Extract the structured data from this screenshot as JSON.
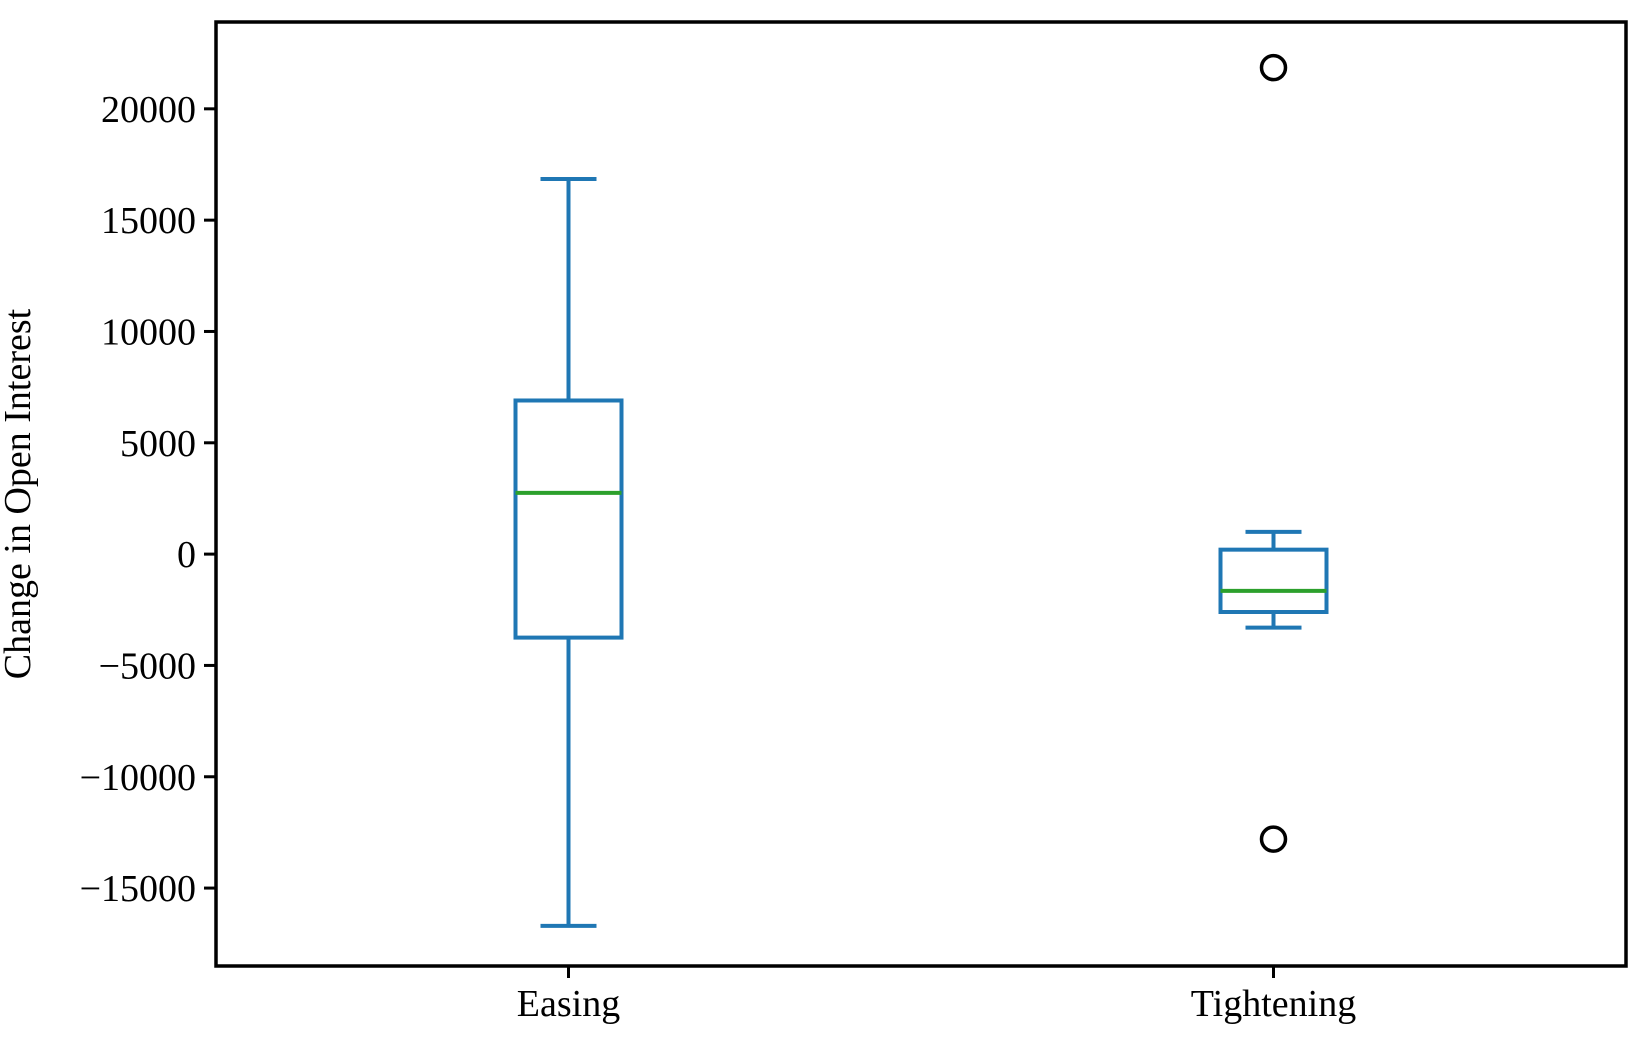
{
  "chart_data": {
    "type": "box",
    "title": "",
    "xlabel": "",
    "ylabel": "Change in Open Interest",
    "ylim": [
      -18500,
      23900
    ],
    "yticks": [
      -15000,
      -10000,
      -5000,
      0,
      5000,
      10000,
      15000,
      20000
    ],
    "ytick_labels": [
      "−15000",
      "−10000",
      "−5000",
      "0",
      "5000",
      "10000",
      "15000",
      "20000"
    ],
    "categories": [
      "Easing",
      "Tightening"
    ],
    "boxes": [
      {
        "category": "Easing",
        "whisker_low": -16700,
        "q1": -3750,
        "median": 2750,
        "q3": 6900,
        "whisker_high": 16850,
        "outliers": []
      },
      {
        "category": "Tightening",
        "whisker_low": -3300,
        "q1": -2600,
        "median": -1650,
        "q3": 200,
        "whisker_high": 1000,
        "outliers": [
          21850,
          -12800
        ]
      }
    ],
    "grid": false,
    "colors": {
      "box": "#1f77b4",
      "median": "#2ca02c",
      "outlier": "#000000",
      "axes": "#000000"
    }
  }
}
